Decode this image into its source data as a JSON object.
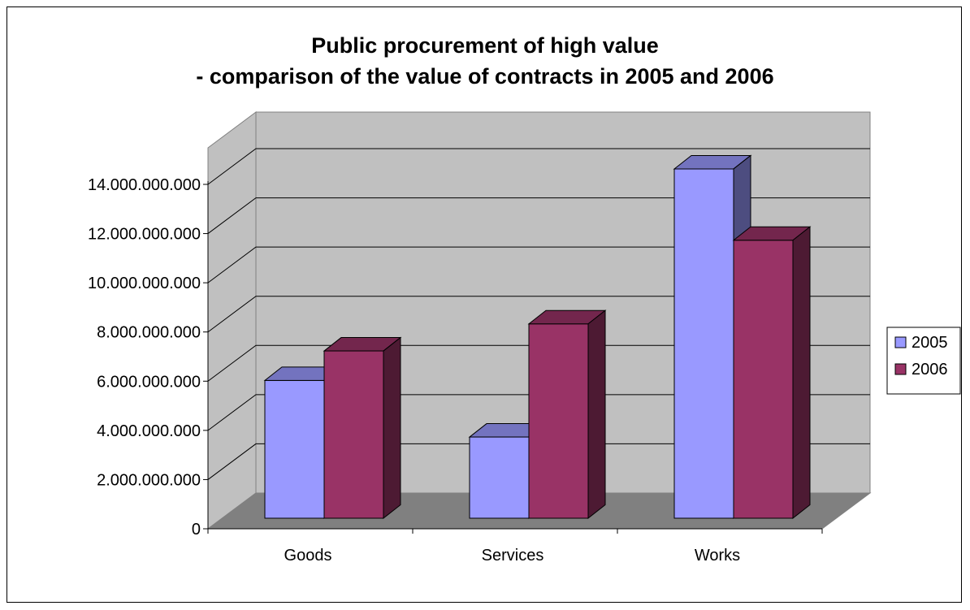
{
  "chart_data": {
    "type": "bar",
    "title_line1": "Public procurement of high value",
    "title_line2": "- comparison of the value of contracts in 2005 and 2006",
    "categories": [
      "Goods",
      "Services",
      "Works"
    ],
    "series": [
      {
        "name": "2005",
        "values": [
          5600000000,
          3300000000,
          14200000000
        ],
        "color": "#9999ff"
      },
      {
        "name": "2006",
        "values": [
          6800000000,
          7900000000,
          11300000000
        ],
        "color": "#993366"
      }
    ],
    "y_ticks": [
      "0",
      "2.000.000.000",
      "4.000.000.000",
      "6.000.000.000",
      "8.000.000.000",
      "10.000.000.000",
      "12.000.000.000",
      "14.000.000.000"
    ],
    "ylim": [
      0,
      14000000000
    ],
    "grid": true,
    "legend_position": "right",
    "colors": {
      "wall": "#c0c0c0",
      "floor": "#808080"
    }
  }
}
